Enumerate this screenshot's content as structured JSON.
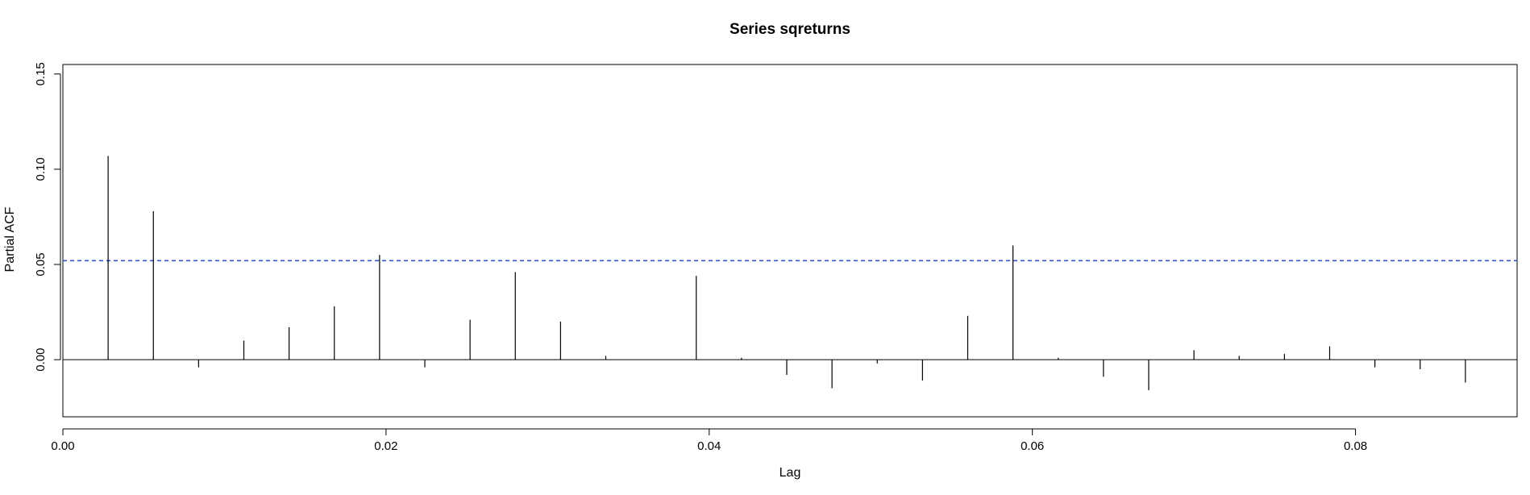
{
  "chart_data": {
    "type": "bar",
    "title": "Series  sqreturns",
    "xlabel": "Lag",
    "ylabel": "Partial ACF",
    "xlim": [
      0,
      0.09
    ],
    "ylim": [
      -0.03,
      0.155
    ],
    "x_ticks": [
      0.0,
      0.02,
      0.04,
      0.06,
      0.08
    ],
    "x_tick_labels": [
      "0.00",
      "0.02",
      "0.04",
      "0.06",
      "0.08"
    ],
    "y_ticks": [
      0.0,
      0.05,
      0.1,
      0.15
    ],
    "y_tick_labels": [
      "0.00",
      "0.05",
      "0.10",
      "0.15"
    ],
    "lag_step": 0.0028,
    "values": [
      0.107,
      0.078,
      -0.004,
      0.01,
      0.017,
      0.028,
      0.055,
      -0.004,
      0.021,
      0.046,
      0.02,
      0.002,
      0.0,
      0.044,
      0.001,
      -0.008,
      -0.015,
      -0.002,
      -0.011,
      0.023,
      0.06,
      0.001,
      -0.009,
      -0.016,
      0.005,
      0.002,
      0.003,
      0.007,
      -0.004,
      -0.005,
      -0.012
    ],
    "confidence_bound": 0.052,
    "zero_line": 0,
    "colors": {
      "bars": "#000000",
      "confidence_line": "#3355cc",
      "axes": "#000000"
    },
    "grid": false,
    "legend": "none"
  }
}
